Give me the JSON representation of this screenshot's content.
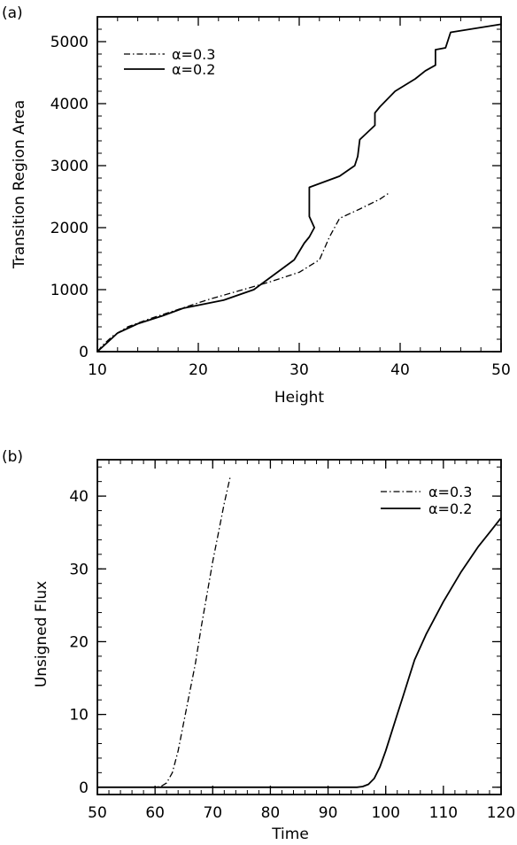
{
  "chart_data": [
    {
      "type": "line",
      "panel_label": "(a)",
      "xlabel": "Height",
      "ylabel": "Transition Region Area",
      "xlim": [
        10,
        50
      ],
      "ylim": [
        0,
        5400
      ],
      "x_ticks": [
        10,
        20,
        30,
        40,
        50
      ],
      "y_ticks": [
        0,
        1000,
        2000,
        3000,
        4000,
        5000
      ],
      "grid": false,
      "legend_position": "top-left",
      "series": [
        {
          "name": "α=0.3",
          "style": "dashdot",
          "x": [
            10.0,
            10.5,
            11.5,
            13.0,
            15.0,
            18.0,
            21.0,
            24.0,
            27.0,
            30.0,
            32.0,
            33.0,
            34.0,
            36.0,
            38.0,
            39.0
          ],
          "y": [
            0,
            100,
            250,
            400,
            520,
            680,
            840,
            980,
            1120,
            1280,
            1480,
            1850,
            2150,
            2300,
            2460,
            2570
          ]
        },
        {
          "name": "α=0.2",
          "style": "solid",
          "x": [
            10.0,
            11.0,
            12.0,
            14.0,
            16.5,
            18.5,
            22.5,
            25.5,
            29.5,
            30.5,
            31.0,
            31.5,
            31.0,
            31.0,
            34.0,
            35.5,
            35.8,
            36.0,
            37.5,
            37.5,
            38.0,
            39.5,
            40.5,
            41.5,
            42.5,
            43.5,
            43.5,
            44.5,
            45.0,
            50.0
          ],
          "y": [
            0,
            150,
            300,
            450,
            580,
            700,
            830,
            1000,
            1480,
            1750,
            1850,
            2000,
            2180,
            2650,
            2830,
            3000,
            3150,
            3420,
            3650,
            3850,
            3950,
            4200,
            4300,
            4400,
            4530,
            4620,
            4870,
            4900,
            5150,
            5280
          ]
        }
      ]
    },
    {
      "type": "line",
      "panel_label": "(b)",
      "xlabel": "Time",
      "ylabel": "Unsigned Flux",
      "xlim": [
        50,
        120
      ],
      "ylim": [
        -1,
        45
      ],
      "x_ticks": [
        50,
        60,
        70,
        80,
        90,
        100,
        110,
        120
      ],
      "y_ticks": [
        0,
        10,
        20,
        30,
        40
      ],
      "grid": false,
      "legend_position": "top-right",
      "series": [
        {
          "name": "α=0.3",
          "style": "dashdot",
          "x": [
            50,
            60,
            61.0,
            62.0,
            63.0,
            64.0,
            65.0,
            66.0,
            67.0,
            68.0,
            69.0,
            70.0,
            71.0,
            72.0,
            73.0
          ],
          "y": [
            0,
            0,
            0.1,
            0.6,
            2.0,
            5.0,
            9.0,
            13.0,
            17.0,
            22.0,
            26.5,
            31.0,
            35.0,
            39.0,
            42.5
          ]
        },
        {
          "name": "α=0.2",
          "style": "solid",
          "x": [
            50,
            95,
            96.0,
            97.0,
            98.0,
            99.0,
            100.0,
            101.0,
            102.0,
            103.0,
            104.0,
            105.0,
            107.0,
            110.0,
            113.0,
            116.0,
            118.0,
            120.0
          ],
          "y": [
            0,
            0,
            0.1,
            0.4,
            1.2,
            2.8,
            5.0,
            7.5,
            10.0,
            12.5,
            15.0,
            17.5,
            21.0,
            25.5,
            29.5,
            33.0,
            35.0,
            37.0
          ]
        }
      ]
    }
  ]
}
